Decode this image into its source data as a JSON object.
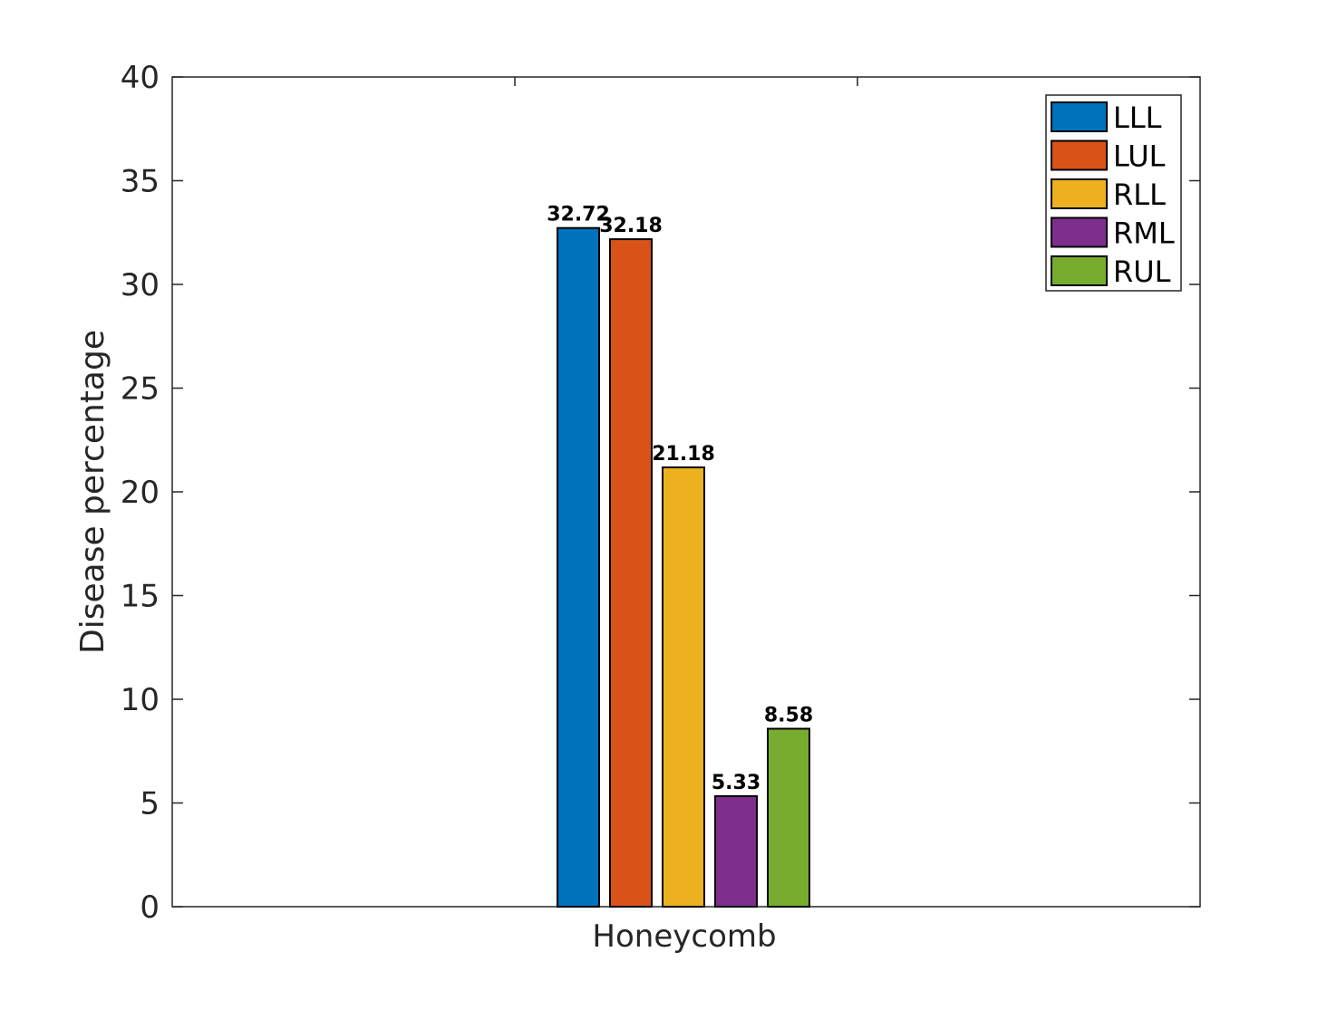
{
  "chart_data": {
    "type": "bar",
    "categories": [
      "Honeycomb"
    ],
    "series": [
      {
        "name": "LLL",
        "values": [
          32.72
        ],
        "color": "#0072BD"
      },
      {
        "name": "LUL",
        "values": [
          32.18
        ],
        "color": "#D95319"
      },
      {
        "name": "RLL",
        "values": [
          21.18
        ],
        "color": "#EDB120"
      },
      {
        "name": "RML",
        "values": [
          5.33
        ],
        "color": "#7E2F8E"
      },
      {
        "name": "RUL",
        "values": [
          8.58
        ],
        "color": "#77AC30"
      }
    ],
    "data_labels": [
      "32.72",
      "32.18",
      "21.18",
      "5.33",
      "8.58"
    ],
    "title": "",
    "xlabel": "",
    "ylabel": "Disease percentage",
    "ylim": [
      0,
      40
    ],
    "yticks": [
      "0",
      "5",
      "10",
      "15",
      "20",
      "25",
      "30",
      "35",
      "40"
    ],
    "grid": false,
    "legend_position": "top-right"
  }
}
